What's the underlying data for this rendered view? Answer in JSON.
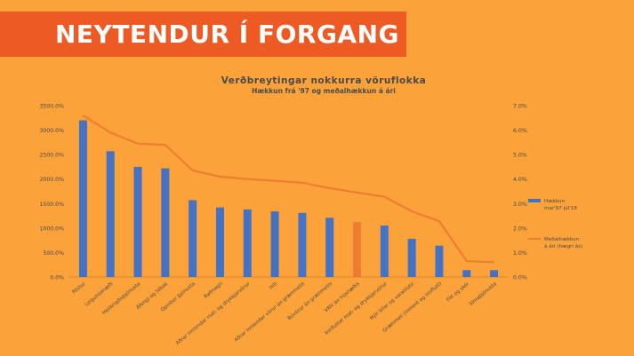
{
  "slide": {
    "title": "NEYTENDUR Í FORGANG",
    "colors": {
      "background": "#fba23a",
      "banner": "#ee5a24",
      "title_text": "#ffffff"
    }
  },
  "chart_data": {
    "type": "bar",
    "title": "Verðbreytingar nokkurra vöruflokka",
    "subtitle": "Hækkun frá '97 og meðalhækkun á ári",
    "categories": [
      "Póstur",
      "Leiguhúsnæði",
      "Heilbrigðisþjónusta",
      "Áfengi og tóbak",
      "Opinber þjónusta",
      "Rafmagn",
      "Aðrar innlendar mat- og drykkjarvörur",
      "Hiti",
      "Aðrar innlendar vörur án grænmetis",
      "Búvörur án grænmetis",
      "VNV án húsnæðis",
      "Innfluttar mat- og drykkjarvörur",
      "Nýir bílar og varahlutir",
      "Grænmeti (innlent og innflutt)",
      "Föt og skór",
      "Símaþjónusta"
    ],
    "series": [
      {
        "name": "Hækkun mar'97 júl'18",
        "kind": "bar",
        "axis": "left",
        "color": "#4472c4",
        "values": [
          3200,
          2570,
          2250,
          2220,
          1570,
          1420,
          1380,
          1340,
          1310,
          1210,
          1120,
          1050,
          780,
          640,
          140,
          140
        ]
      },
      {
        "name": "Meðalhækkun á ári (hægri ás)",
        "kind": "line",
        "axis": "right",
        "color": "#ed7d31",
        "values": [
          6.6,
          5.9,
          5.45,
          5.4,
          4.35,
          4.1,
          4.0,
          3.93,
          3.85,
          3.63,
          3.45,
          3.28,
          2.68,
          2.28,
          0.65,
          0.6
        ]
      }
    ],
    "highlight": {
      "index": 10,
      "color": "#ed7d31"
    },
    "ylim": [
      0,
      3500
    ],
    "yticks": [
      "0.0%",
      "500.0%",
      "1000.0%",
      "1500.0%",
      "2000.0%",
      "2500.0%",
      "3000.0%",
      "3500.0%"
    ],
    "y2lim": [
      0,
      7
    ],
    "y2ticks": [
      "0.0%",
      "1.0%",
      "2.0%",
      "3.0%",
      "4.0%",
      "5.0%",
      "6.0%",
      "7.0%"
    ],
    "legend": {
      "placement": "right",
      "items": [
        {
          "lines": [
            "Hækkun",
            "mar'97 júl'18"
          ]
        },
        {
          "lines": [
            "Meðalhækkun",
            "á ári (hægri ás)"
          ]
        }
      ]
    },
    "grid": false
  }
}
